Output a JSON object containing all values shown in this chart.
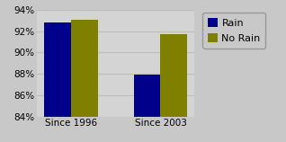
{
  "categories": [
    "Since 1996",
    "Since 2003"
  ],
  "series": {
    "Rain": [
      92.8,
      87.9
    ],
    "No Rain": [
      93.1,
      91.7
    ]
  },
  "bar_colors": {
    "Rain": "#00008B",
    "No Rain": "#808000"
  },
  "ylim": [
    84,
    94
  ],
  "yticks": [
    84,
    86,
    88,
    90,
    92,
    94
  ],
  "bar_width": 0.3,
  "background_color": "#C8C8C8",
  "plot_bg_color": "#D4D4D4",
  "grid_color": "#BEBEBE",
  "legend_labels": [
    "Rain",
    "No Rain"
  ]
}
